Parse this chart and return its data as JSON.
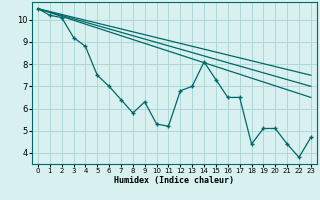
{
  "xlabel": "Humidex (Indice chaleur)",
  "background_color": "#d8f0f0",
  "grid_color": "#aad4d4",
  "line_color": "#006868",
  "xlim": [
    -0.5,
    23.5
  ],
  "ylim": [
    3.5,
    10.8
  ],
  "yticks": [
    4,
    5,
    6,
    7,
    8,
    9,
    10
  ],
  "xticks": [
    0,
    1,
    2,
    3,
    4,
    5,
    6,
    7,
    8,
    9,
    10,
    11,
    12,
    13,
    14,
    15,
    16,
    17,
    18,
    19,
    20,
    21,
    22,
    23
  ],
  "data_x": [
    0,
    1,
    2,
    3,
    4,
    5,
    6,
    7,
    8,
    9,
    10,
    11,
    12,
    13,
    14,
    15,
    16,
    17,
    18,
    19,
    20,
    21,
    22,
    23
  ],
  "data_y": [
    10.5,
    10.2,
    10.1,
    9.2,
    8.8,
    7.5,
    7.0,
    6.4,
    5.8,
    6.3,
    5.3,
    5.2,
    6.8,
    7.0,
    8.1,
    7.3,
    6.5,
    6.5,
    4.4,
    5.1,
    5.1,
    4.4,
    3.8,
    4.7
  ],
  "trend1_x": [
    0,
    23
  ],
  "trend1_y": [
    10.5,
    7.5
  ],
  "trend2_x": [
    0,
    23
  ],
  "trend2_y": [
    10.5,
    7.0
  ],
  "trend3_x": [
    0,
    23
  ],
  "trend3_y": [
    10.5,
    6.5
  ],
  "xlabel_fontsize": 6,
  "tick_fontsize_x": 5,
  "tick_fontsize_y": 6
}
